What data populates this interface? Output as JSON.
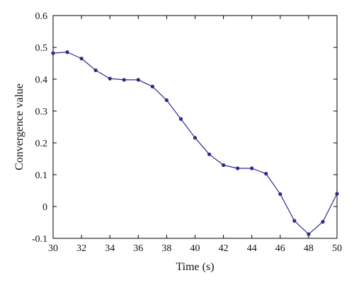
{
  "chart_data": {
    "type": "line",
    "title": "",
    "xlabel": "Time (s)",
    "ylabel": "Convergence value",
    "xlim": [
      30,
      50
    ],
    "ylim": [
      -0.1,
      0.6
    ],
    "xticks": [
      30,
      32,
      34,
      36,
      38,
      40,
      42,
      44,
      46,
      48,
      50
    ],
    "yticks": [
      -0.1,
      0,
      0.1,
      0.2,
      0.3,
      0.4,
      0.5,
      0.6
    ],
    "xtick_labels": [
      "30",
      "32",
      "34",
      "36",
      "38",
      "40",
      "42",
      "44",
      "46",
      "48",
      "50"
    ],
    "ytick_labels": [
      "-0.1",
      "0",
      "0.1",
      "0.2",
      "0.3",
      "0.4",
      "0.5",
      "0.6"
    ],
    "grid": false,
    "series": [
      {
        "color": "#2b2b8c",
        "marker": "dot",
        "x": [
          30,
          31,
          32,
          33,
          34,
          35,
          36,
          37,
          38,
          39,
          40,
          41,
          42,
          43,
          44,
          45,
          46,
          47,
          48,
          49,
          50
        ],
        "y": [
          0.482,
          0.485,
          0.465,
          0.428,
          0.402,
          0.398,
          0.398,
          0.377,
          0.334,
          0.275,
          0.216,
          0.164,
          0.13,
          0.12,
          0.12,
          0.103,
          0.039,
          -0.045,
          -0.087,
          -0.048,
          0.04
        ]
      }
    ]
  }
}
